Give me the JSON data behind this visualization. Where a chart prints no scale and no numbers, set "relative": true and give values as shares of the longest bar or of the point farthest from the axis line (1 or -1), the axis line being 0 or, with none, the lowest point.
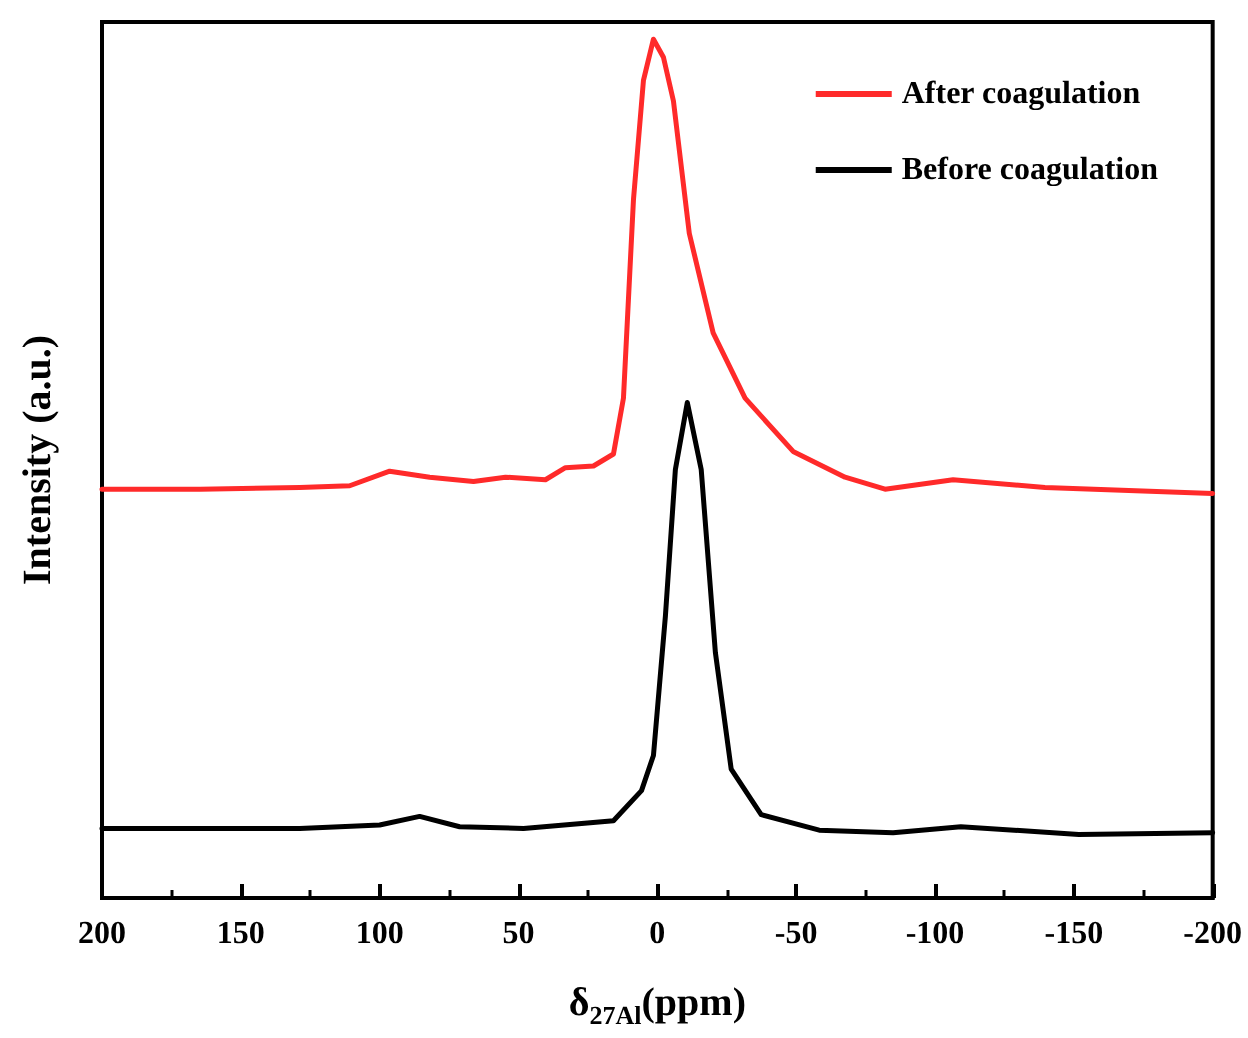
{
  "chart_data": {
    "type": "line",
    "relative": true,
    "xlabel": "δ$_{27Al}$(ppm)",
    "ylabel": "Intensity (a.u.)",
    "xlim": [
      200,
      -200
    ],
    "xticks": [
      200,
      150,
      100,
      50,
      0,
      -50,
      -100,
      -150,
      -200
    ],
    "legend": "top right",
    "grid": false,
    "marker": "none",
    "line_style": "solid",
    "series": [
      {
        "name": "After coagulation",
        "color": "#ff2a2a",
        "x": [
          200,
          164.7,
          128.8,
          110.8,
          96.4,
          82.0,
          66.2,
          54.7,
          40.3,
          33.1,
          23.0,
          15.8,
          12.2,
          8.6,
          5.0,
          1.4,
          -2.2,
          -5.8,
          -11.5,
          -20.1,
          -31.6,
          -48.9,
          -67.6,
          -82.0,
          -106.5,
          -139.6,
          -200
        ],
        "values": [
          0.476,
          0.476,
          0.478,
          0.48,
          0.497,
          0.49,
          0.485,
          0.49,
          0.487,
          0.501,
          0.503,
          0.517,
          0.582,
          0.813,
          0.952,
          1.0,
          0.979,
          0.928,
          0.774,
          0.658,
          0.582,
          0.52,
          0.49,
          0.476,
          0.487,
          0.478,
          0.471
        ]
      },
      {
        "name": "Before coagulation",
        "color": "#000000",
        "x": [
          200,
          128.8,
          100.0,
          85.6,
          71.2,
          48.2,
          15.8,
          5.7,
          1.4,
          -2.9,
          -6.5,
          -10.8,
          -15.8,
          -20.9,
          -26.6,
          -37.4,
          -58.3,
          -84.9,
          -109.3,
          -151.8,
          -200
        ],
        "values": [
          0.081,
          0.081,
          0.085,
          0.095,
          0.083,
          0.081,
          0.09,
          0.125,
          0.166,
          0.328,
          0.499,
          0.577,
          0.499,
          0.286,
          0.15,
          0.097,
          0.079,
          0.076,
          0.083,
          0.074,
          0.076
        ]
      }
    ]
  }
}
